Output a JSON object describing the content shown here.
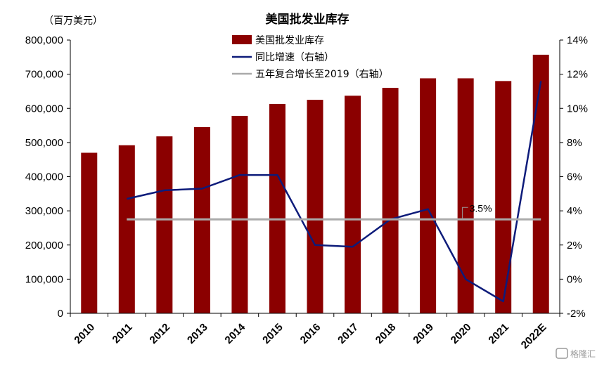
{
  "chart_data": {
    "type": "bar",
    "title": "美国批发业库存",
    "left_axis_unit": "（百万美元）",
    "categories": [
      "2010",
      "2011",
      "2012",
      "2013",
      "2014",
      "2015",
      "2016",
      "2017",
      "2018",
      "2019",
      "2020",
      "2021",
      "2022E"
    ],
    "ylim_left": [
      0,
      800000
    ],
    "yticks_left": [
      "0",
      "100,000",
      "200,000",
      "300,000",
      "400,000",
      "500,000",
      "600,000",
      "700,000",
      "800,000"
    ],
    "ylim_right": [
      -2,
      14
    ],
    "yticks_right": [
      "-2%",
      "0%",
      "2%",
      "4%",
      "6%",
      "8%",
      "10%",
      "12%",
      "14%"
    ],
    "series": [
      {
        "name": "美国批发业库存",
        "type": "bar",
        "axis": "left",
        "color": "#8B0000",
        "values": [
          470000,
          492000,
          518000,
          545000,
          578000,
          613000,
          625000,
          637000,
          660000,
          688000,
          688000,
          680000,
          757000
        ]
      },
      {
        "name": "同比增速（右轴）",
        "type": "line",
        "axis": "right",
        "color": "#0D1B7A",
        "values": [
          null,
          4.7,
          5.2,
          5.3,
          6.1,
          6.1,
          2.0,
          1.9,
          3.5,
          4.1,
          0.0,
          -1.3,
          11.6
        ]
      },
      {
        "name": "五年复合增长至2019（右轴）",
        "type": "line",
        "axis": "right",
        "color": "#AAAAAA",
        "values": [
          null,
          3.5,
          3.5,
          3.5,
          3.5,
          3.5,
          3.5,
          3.5,
          3.5,
          3.5,
          3.5,
          3.5,
          3.5
        ]
      }
    ],
    "annotations": [
      {
        "text": "3.5%",
        "category": "2019",
        "value": 3.5
      }
    ],
    "grid": false,
    "legend_position": "top-center"
  },
  "watermark": "格隆汇"
}
